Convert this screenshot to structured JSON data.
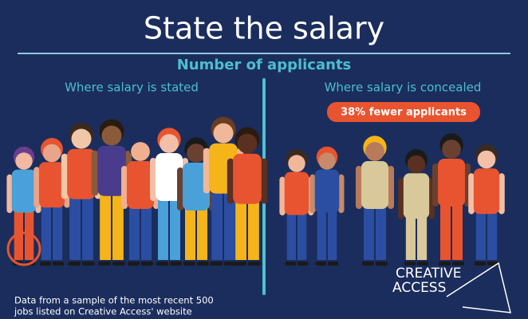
{
  "header": {
    "title": "State the salary",
    "subtitle": "Number of applicants"
  },
  "left": {
    "heading": "Where salary is stated"
  },
  "right": {
    "heading": "Where salary is concealed",
    "badge": "38% fewer applicants"
  },
  "footnote": {
    "lines": [
      "Data from a sample of the most recent 500",
      "jobs listed on Creative Access' website"
    ]
  },
  "logo": {
    "lines": [
      "CREATIVE",
      "ACCESS"
    ]
  }
}
